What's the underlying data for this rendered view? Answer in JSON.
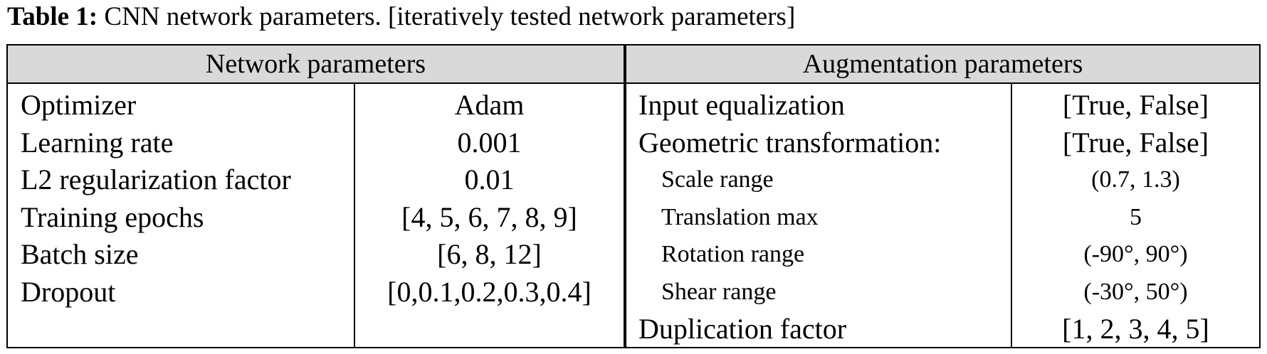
{
  "caption": {
    "label": "Table 1:",
    "text": "CNN network parameters. [iteratively tested network parameters]"
  },
  "table": {
    "headers": [
      "Network parameters",
      "Augmentation parameters"
    ],
    "network_rows": [
      [
        "Optimizer",
        "Adam"
      ],
      [
        "Learning rate",
        "0.001"
      ],
      [
        "L2 regularization factor",
        "0.01"
      ],
      [
        "Training epochs",
        "[4, 5, 6, 7, 8, 9]"
      ],
      [
        "Batch size",
        "[6, 8, 12]"
      ],
      [
        "Dropout",
        "[0,0.1,0.2,0.3,0.4]"
      ]
    ],
    "augmentation_rows": [
      {
        "label": "Input equalization",
        "value": "[True, False]"
      },
      {
        "label": "Geometric transformation:",
        "value": "[True, False]",
        "children": [
          {
            "label": "Scale range",
            "value": "(0.7, 1.3)"
          },
          {
            "label": "Translation max",
            "value": "5"
          },
          {
            "label": "Rotation range",
            "value": "(-90°, 90°)"
          },
          {
            "label": "Shear range",
            "value": "(-30°, 50°)"
          }
        ]
      },
      {
        "label": "Duplication factor",
        "value": "[1, 2, 3, 4, 5]"
      }
    ]
  }
}
